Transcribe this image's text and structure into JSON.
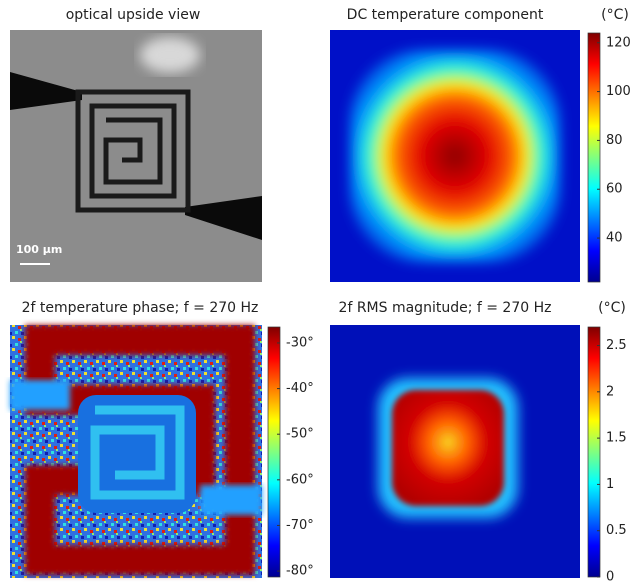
{
  "chart_data": [
    {
      "type": "image",
      "title": "optical upside view",
      "scale_bar": "100 µm"
    },
    {
      "type": "heatmap",
      "title": "DC temperature component",
      "unit": "(°C)",
      "ylim": [
        22,
        124
      ],
      "yticks": [
        40,
        60,
        80,
        100,
        120
      ]
    },
    {
      "type": "heatmap",
      "title": "2f temperature phase; f = 270 Hz",
      "ylim": [
        -81.3,
        -26.5
      ],
      "yticks": [
        {
          "value": -30,
          "label": "-30°"
        },
        {
          "value": -40,
          "label": "-40°"
        },
        {
          "value": -50,
          "label": "-50°"
        },
        {
          "value": -60,
          "label": "-60°"
        },
        {
          "value": -70,
          "label": "-70°"
        },
        {
          "value": -80,
          "label": "-80°"
        }
      ]
    },
    {
      "type": "heatmap",
      "title": "2f RMS magnitude; f = 270 Hz",
      "unit": "(°C)",
      "ylim": [
        0,
        2.7
      ],
      "yticks": [
        0,
        0.5,
        1,
        1.5,
        2,
        2.5
      ]
    }
  ]
}
